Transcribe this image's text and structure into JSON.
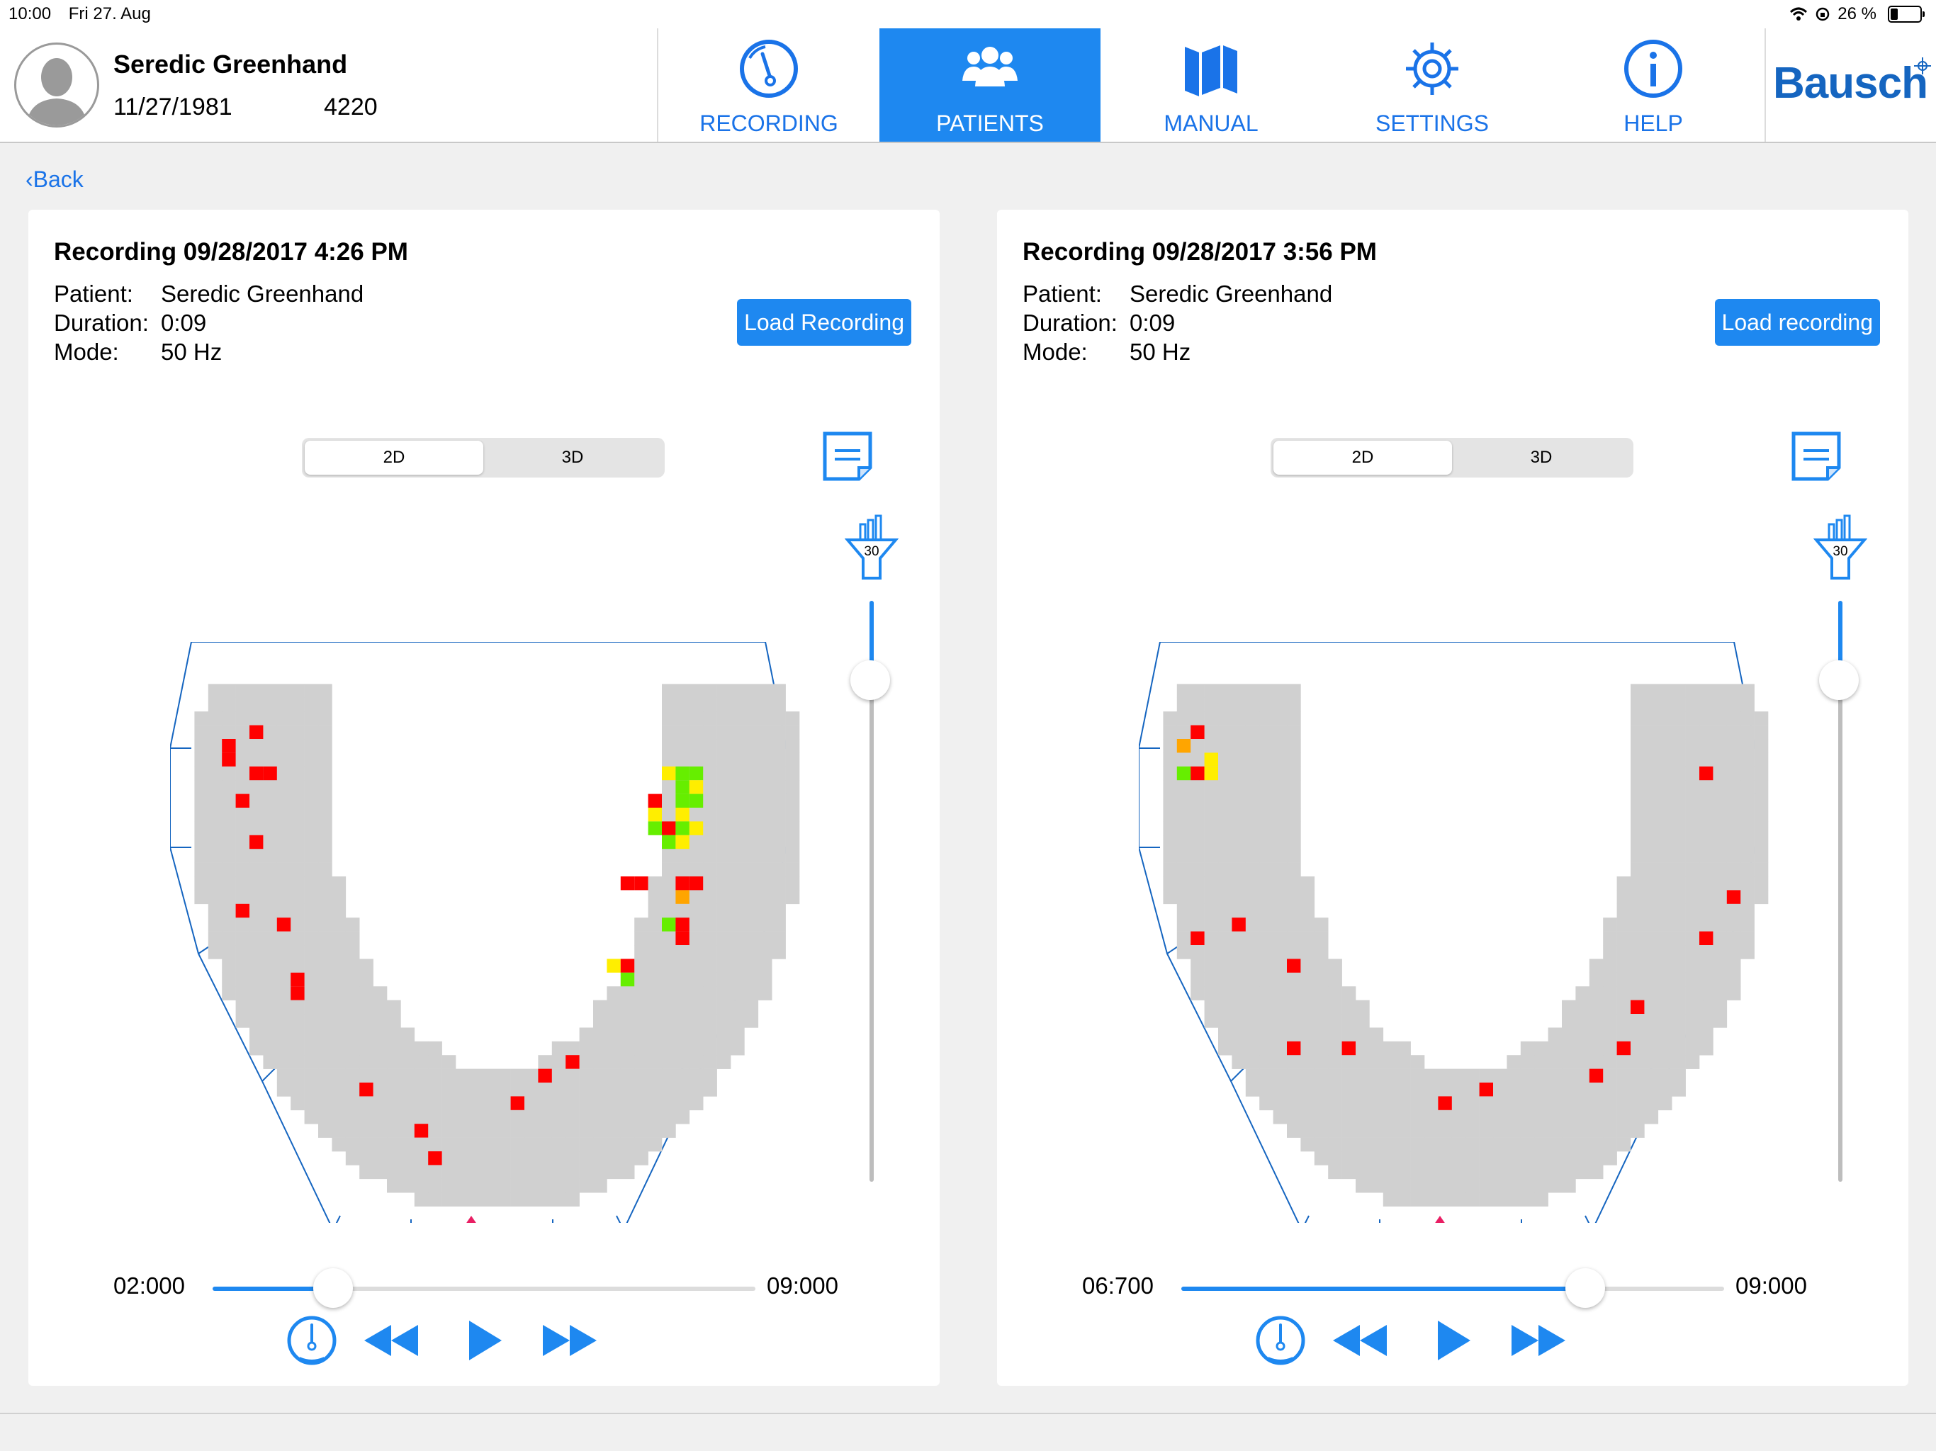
{
  "status": {
    "time": "10:00",
    "date": "Fri 27. Aug",
    "battery": "26 %",
    "battery_level": 0.26
  },
  "patient": {
    "name": "Seredic Greenhand",
    "dob": "11/27/1981",
    "id": "4220"
  },
  "nav": [
    {
      "label": "RECORDING",
      "icon": "gauge-icon",
      "active": false
    },
    {
      "label": "PATIENTS",
      "icon": "patients-icon",
      "active": true
    },
    {
      "label": "MANUAL",
      "icon": "manual-icon",
      "active": false
    },
    {
      "label": "SETTINGS",
      "icon": "gear-icon",
      "active": false
    },
    {
      "label": "HELP",
      "icon": "info-icon",
      "active": false
    }
  ],
  "logo": "Bausch",
  "back_label": "Back",
  "colors": {
    "accent": "#1e88f0",
    "occlusion_red": "#ff0000",
    "occlusion_orange": "#ffa500",
    "occlusion_yellow": "#ffee00",
    "occlusion_green": "#66ee00",
    "arch_gray": "#d0d0d0",
    "outline_blue": "#1565c0",
    "marker": "#e91e63"
  },
  "labels": {
    "patient": "Patient:",
    "duration": "Duration:",
    "mode": "Mode:",
    "view_2d": "2D",
    "view_3d": "3D"
  },
  "recordings": [
    {
      "title": "Recording 09/28/2017 4:26 PM",
      "patient": "Seredic Greenhand",
      "duration": "0:09",
      "mode": "50 Hz",
      "load_label": "Load Recording",
      "view": "2D",
      "filter_value": "30",
      "time_start": "02:000",
      "time_end": "09:000",
      "progress": 0.222,
      "contacts": [
        {
          "c": 5,
          "r": 4,
          "k": "red"
        },
        {
          "c": 3,
          "r": 5,
          "k": "red"
        },
        {
          "c": 3,
          "r": 6,
          "k": "red"
        },
        {
          "c": 5,
          "r": 7,
          "k": "red"
        },
        {
          "c": 6,
          "r": 7,
          "k": "red"
        },
        {
          "c": 4,
          "r": 9,
          "k": "red"
        },
        {
          "c": 5,
          "r": 12,
          "k": "red"
        },
        {
          "c": 4,
          "r": 17,
          "k": "red"
        },
        {
          "c": 7,
          "r": 18,
          "k": "red"
        },
        {
          "c": 8,
          "r": 22,
          "k": "red"
        },
        {
          "c": 8,
          "r": 23,
          "k": "red"
        },
        {
          "c": 13,
          "r": 30,
          "k": "red"
        },
        {
          "c": 17,
          "r": 33,
          "k": "red"
        },
        {
          "c": 18,
          "r": 35,
          "k": "red"
        },
        {
          "c": 24,
          "r": 31,
          "k": "red"
        },
        {
          "c": 26,
          "r": 29,
          "k": "red"
        },
        {
          "c": 28,
          "r": 28,
          "k": "red"
        },
        {
          "c": 35,
          "r": 7,
          "k": "yellow"
        },
        {
          "c": 36,
          "r": 7,
          "k": "green"
        },
        {
          "c": 37,
          "r": 7,
          "k": "green"
        },
        {
          "c": 36,
          "r": 8,
          "k": "green"
        },
        {
          "c": 37,
          "r": 8,
          "k": "yellow"
        },
        {
          "c": 34,
          "r": 9,
          "k": "red"
        },
        {
          "c": 36,
          "r": 9,
          "k": "green"
        },
        {
          "c": 37,
          "r": 9,
          "k": "green"
        },
        {
          "c": 34,
          "r": 10,
          "k": "yellow"
        },
        {
          "c": 36,
          "r": 10,
          "k": "yellow"
        },
        {
          "c": 34,
          "r": 11,
          "k": "green"
        },
        {
          "c": 35,
          "r": 11,
          "k": "red"
        },
        {
          "c": 36,
          "r": 11,
          "k": "green"
        },
        {
          "c": 37,
          "r": 11,
          "k": "yellow"
        },
        {
          "c": 35,
          "r": 12,
          "k": "green"
        },
        {
          "c": 36,
          "r": 12,
          "k": "yellow"
        },
        {
          "c": 32,
          "r": 15,
          "k": "red"
        },
        {
          "c": 33,
          "r": 15,
          "k": "red"
        },
        {
          "c": 36,
          "r": 15,
          "k": "red"
        },
        {
          "c": 37,
          "r": 15,
          "k": "red"
        },
        {
          "c": 36,
          "r": 16,
          "k": "orange"
        },
        {
          "c": 35,
          "r": 18,
          "k": "green"
        },
        {
          "c": 36,
          "r": 18,
          "k": "red"
        },
        {
          "c": 36,
          "r": 19,
          "k": "red"
        },
        {
          "c": 31,
          "r": 21,
          "k": "yellow"
        },
        {
          "c": 32,
          "r": 21,
          "k": "red"
        },
        {
          "c": 32,
          "r": 22,
          "k": "green"
        }
      ]
    },
    {
      "title": "Recording 09/28/2017 3:56 PM",
      "patient": "Seredic Greenhand",
      "duration": "0:09",
      "mode": "50 Hz",
      "load_label": "Load recording",
      "view": "2D",
      "filter_value": "30",
      "time_start": "06:700",
      "time_end": "09:000",
      "progress": 0.744,
      "contacts": [
        {
          "c": 3,
          "r": 4,
          "k": "red"
        },
        {
          "c": 2,
          "r": 5,
          "k": "orange"
        },
        {
          "c": 4,
          "r": 6,
          "k": "yellow"
        },
        {
          "c": 2,
          "r": 7,
          "k": "green"
        },
        {
          "c": 3,
          "r": 7,
          "k": "red"
        },
        {
          "c": 4,
          "r": 7,
          "k": "yellow"
        },
        {
          "c": 40,
          "r": 7,
          "k": "red"
        },
        {
          "c": 42,
          "r": 16,
          "k": "red"
        },
        {
          "c": 3,
          "r": 19,
          "k": "red"
        },
        {
          "c": 6,
          "r": 18,
          "k": "red"
        },
        {
          "c": 40,
          "r": 19,
          "k": "red"
        },
        {
          "c": 10,
          "r": 21,
          "k": "red"
        },
        {
          "c": 35,
          "r": 24,
          "k": "red"
        },
        {
          "c": 10,
          "r": 27,
          "k": "red"
        },
        {
          "c": 14,
          "r": 27,
          "k": "red"
        },
        {
          "c": 34,
          "r": 27,
          "k": "red"
        },
        {
          "c": 32,
          "r": 29,
          "k": "red"
        },
        {
          "c": 24,
          "r": 30,
          "k": "red"
        },
        {
          "c": 21,
          "r": 31,
          "k": "red"
        }
      ]
    }
  ]
}
